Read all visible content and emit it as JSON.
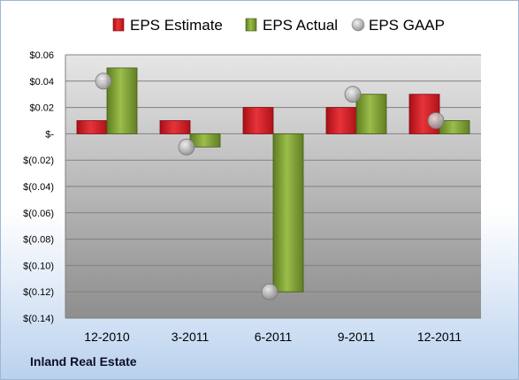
{
  "company": "Inland Real Estate",
  "chart_data": {
    "type": "bar",
    "categories": [
      "12-2010",
      "3-2011",
      "6-2011",
      "9-2011",
      "12-2011"
    ],
    "series": [
      {
        "name": "EPS Estimate",
        "type": "bar",
        "color": "#c0161f",
        "values": [
          0.01,
          0.01,
          0.02,
          0.02,
          0.03
        ]
      },
      {
        "name": "EPS Actual",
        "type": "bar",
        "color": "#6e8f2a",
        "values": [
          0.05,
          -0.01,
          -0.12,
          0.03,
          0.01
        ]
      },
      {
        "name": "EPS GAAP",
        "type": "scatter",
        "color": "#a8a8a8",
        "values": [
          0.04,
          -0.01,
          -0.12,
          0.03,
          0.01
        ]
      }
    ],
    "ylim": [
      -0.14,
      0.06
    ],
    "yticks": [
      0.06,
      0.04,
      0.02,
      0,
      -0.02,
      -0.04,
      -0.06,
      -0.08,
      -0.1,
      -0.12,
      -0.14
    ],
    "ytick_labels": [
      "$0.06",
      "$0.04",
      "$0.02",
      "$-",
      "$(0.02)",
      "$(0.04)",
      "$(0.06)",
      "$(0.08)",
      "$(0.10)",
      "$(0.12)",
      "$(0.14)"
    ],
    "grid": true,
    "legend_position": "top"
  }
}
